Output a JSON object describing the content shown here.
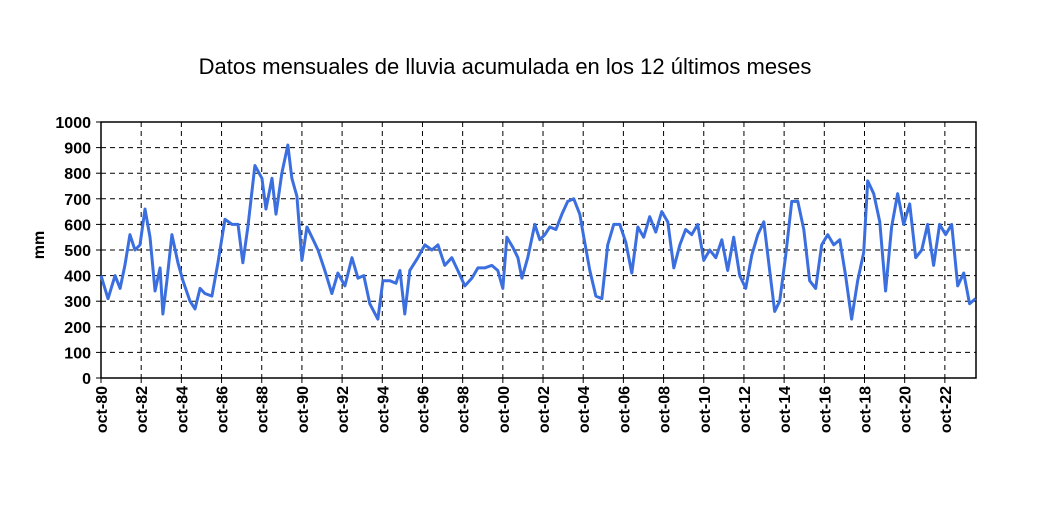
{
  "chart_data": {
    "type": "line",
    "title": "Datos mensuales de lluvia acumulada en los 12 últimos meses",
    "ylabel": "mm",
    "color": "#3b6fe0",
    "grid": true,
    "xlim": [
      1980.75,
      2024.3
    ],
    "ylim": [
      0,
      1000
    ],
    "yticks": [
      0,
      100,
      200,
      300,
      400,
      500,
      600,
      700,
      800,
      900,
      1000
    ],
    "xticks": [
      {
        "value": 1980.75,
        "label": "oct-80"
      },
      {
        "value": 1982.75,
        "label": "oct-82"
      },
      {
        "value": 1984.75,
        "label": "oct-84"
      },
      {
        "value": 1986.75,
        "label": "oct-86"
      },
      {
        "value": 1988.75,
        "label": "oct-88"
      },
      {
        "value": 1990.75,
        "label": "oct-90"
      },
      {
        "value": 1992.75,
        "label": "oct-92"
      },
      {
        "value": 1994.75,
        "label": "oct-94"
      },
      {
        "value": 1996.75,
        "label": "oct-96"
      },
      {
        "value": 1998.75,
        "label": "oct-98"
      },
      {
        "value": 2000.75,
        "label": "oct-00"
      },
      {
        "value": 2002.75,
        "label": "oct-02"
      },
      {
        "value": 2004.75,
        "label": "oct-04"
      },
      {
        "value": 2006.75,
        "label": "oct-06"
      },
      {
        "value": 2008.75,
        "label": "oct-08"
      },
      {
        "value": 2010.75,
        "label": "oct-10"
      },
      {
        "value": 2012.75,
        "label": "oct-12"
      },
      {
        "value": 2014.75,
        "label": "oct-14"
      },
      {
        "value": 2016.75,
        "label": "oct-16"
      },
      {
        "value": 2018.75,
        "label": "oct-18"
      },
      {
        "value": 2020.75,
        "label": "oct-20"
      },
      {
        "value": 2022.75,
        "label": "oct-22"
      }
    ],
    "x": [
      1980.75,
      1981.1,
      1981.45,
      1981.7,
      1981.94,
      1982.19,
      1982.44,
      1982.69,
      1982.94,
      1983.19,
      1983.44,
      1983.69,
      1983.83,
      1984.03,
      1984.28,
      1984.58,
      1984.83,
      1985.18,
      1985.43,
      1985.68,
      1985.92,
      1986.27,
      1986.57,
      1986.92,
      1987.27,
      1987.57,
      1987.81,
      1988.06,
      1988.41,
      1988.76,
      1988.96,
      1989.26,
      1989.46,
      1989.75,
      1990.05,
      1990.25,
      1990.5,
      1990.75,
      1991.0,
      1991.25,
      1991.55,
      1991.89,
      1992.24,
      1992.54,
      1992.89,
      1993.24,
      1993.54,
      1993.83,
      1994.13,
      1994.53,
      1994.78,
      1995.13,
      1995.43,
      1995.63,
      1995.87,
      1996.12,
      1996.52,
      1996.87,
      1997.22,
      1997.52,
      1997.86,
      1998.21,
      1998.51,
      1998.86,
      1999.21,
      1999.51,
      1999.85,
      2000.2,
      2000.5,
      2000.75,
      2000.95,
      2001.25,
      2001.5,
      2001.7,
      2001.99,
      2002.34,
      2002.59,
      2002.84,
      2003.09,
      2003.39,
      2003.69,
      2003.98,
      2004.28,
      2004.58,
      2004.78,
      2005.08,
      2005.38,
      2005.68,
      2005.97,
      2006.27,
      2006.57,
      2006.87,
      2007.17,
      2007.47,
      2007.76,
      2008.06,
      2008.36,
      2008.66,
      2008.96,
      2009.26,
      2009.56,
      2009.85,
      2010.15,
      2010.45,
      2010.75,
      2011.05,
      2011.35,
      2011.65,
      2011.94,
      2012.24,
      2012.54,
      2012.84,
      2013.14,
      2013.44,
      2013.74,
      2014.03,
      2014.28,
      2014.53,
      2014.83,
      2015.13,
      2015.43,
      2015.73,
      2016.02,
      2016.32,
      2016.62,
      2016.92,
      2017.22,
      2017.52,
      2017.81,
      2018.11,
      2018.41,
      2018.71,
      2018.91,
      2019.21,
      2019.51,
      2019.8,
      2020.1,
      2020.4,
      2020.7,
      2021.0,
      2021.3,
      2021.6,
      2021.89,
      2022.19,
      2022.49,
      2022.79,
      2023.09,
      2023.39,
      2023.69,
      2023.98,
      2024.28
    ],
    "values": [
      400,
      310,
      400,
      350,
      440,
      560,
      500,
      520,
      660,
      550,
      340,
      430,
      250,
      380,
      560,
      450,
      380,
      300,
      270,
      350,
      330,
      320,
      450,
      620,
      600,
      600,
      450,
      590,
      830,
      780,
      660,
      780,
      640,
      800,
      910,
      780,
      710,
      460,
      590,
      550,
      500,
      420,
      330,
      410,
      360,
      470,
      390,
      400,
      290,
      230,
      380,
      380,
      370,
      420,
      250,
      420,
      470,
      520,
      500,
      520,
      440,
      470,
      420,
      360,
      390,
      430,
      430,
      440,
      420,
      350,
      550,
      510,
      470,
      390,
      470,
      600,
      540,
      560,
      590,
      580,
      640,
      690,
      700,
      640,
      550,
      420,
      320,
      310,
      520,
      600,
      600,
      530,
      410,
      590,
      550,
      630,
      570,
      650,
      610,
      430,
      520,
      580,
      560,
      600,
      460,
      500,
      470,
      540,
      420,
      550,
      400,
      350,
      480,
      560,
      610,
      420,
      260,
      300,
      480,
      690,
      690,
      580,
      380,
      350,
      520,
      560,
      520,
      540,
      400,
      230,
      380,
      490,
      770,
      720,
      610,
      340,
      590,
      720,
      600,
      680,
      470,
      500,
      600,
      440,
      600,
      560,
      600,
      360,
      410,
      290,
      310
    ]
  }
}
